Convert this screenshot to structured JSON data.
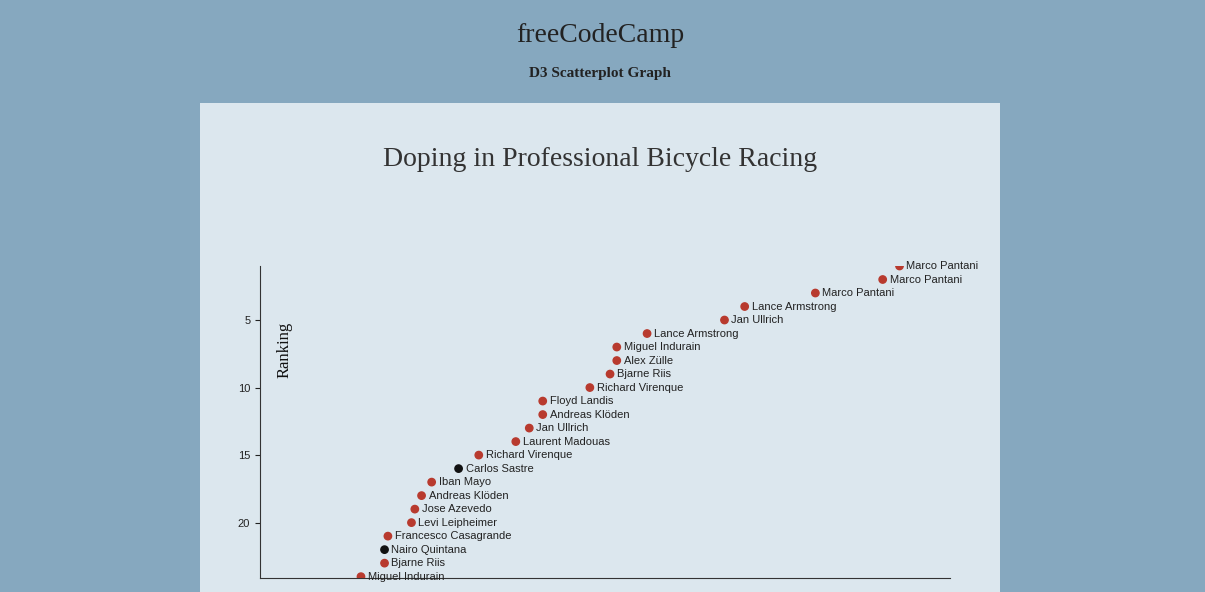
{
  "page": {
    "header": "freeCodeCamp",
    "subheader": "D3 Scatterplot Graph"
  },
  "chart_data": {
    "type": "scatter",
    "title": "Doping in Professional Bicycle Racing",
    "y_label": "Ranking",
    "x": [
      0,
      5,
      25,
      46,
      52,
      75,
      84,
      84,
      86,
      92,
      106,
      106,
      110,
      114,
      125,
      131,
      139,
      142,
      144,
      145,
      152,
      153,
      153,
      160
    ],
    "values": [
      1,
      2,
      3,
      4,
      5,
      6,
      7,
      8,
      9,
      10,
      11,
      12,
      13,
      14,
      15,
      16,
      17,
      18,
      19,
      20,
      21,
      22,
      23,
      24
    ],
    "names": [
      "Marco Pantani",
      "Marco Pantani",
      "Marco Pantani",
      "Lance Armstrong",
      "Jan Ullrich",
      "Lance Armstrong",
      "Miguel Indurain",
      "Alex Zülle",
      "Bjarne Riis",
      "Richard Virenque",
      "Floyd Landis",
      "Andreas Klöden",
      "Jan Ullrich",
      "Laurent Madouas",
      "Richard Virenque",
      "Carlos Sastre",
      "Iban Mayo",
      "Andreas Klöden",
      "Jose Azevedo",
      "Levi Leipheimer",
      "Francesco Casagrande",
      "Nairo Quintana",
      "Bjarne Riis",
      "Miguel Indurain"
    ],
    "colors": [
      "#b83a2e",
      "#b83a2e",
      "#b83a2e",
      "#b83a2e",
      "#b83a2e",
      "#b83a2e",
      "#b83a2e",
      "#b83a2e",
      "#b83a2e",
      "#b83a2e",
      "#b83a2e",
      "#b83a2e",
      "#b83a2e",
      "#b83a2e",
      "#b83a2e",
      "#111111",
      "#b83a2e",
      "#b83a2e",
      "#b83a2e",
      "#b83a2e",
      "#b83a2e",
      "#111111",
      "#b83a2e",
      "#b83a2e"
    ],
    "xlim": [
      190,
      -15
    ],
    "ylim": [
      1,
      24.1
    ],
    "yticks": [
      5,
      10,
      15,
      20
    ],
    "tick_labels": "y",
    "grid": false
  }
}
